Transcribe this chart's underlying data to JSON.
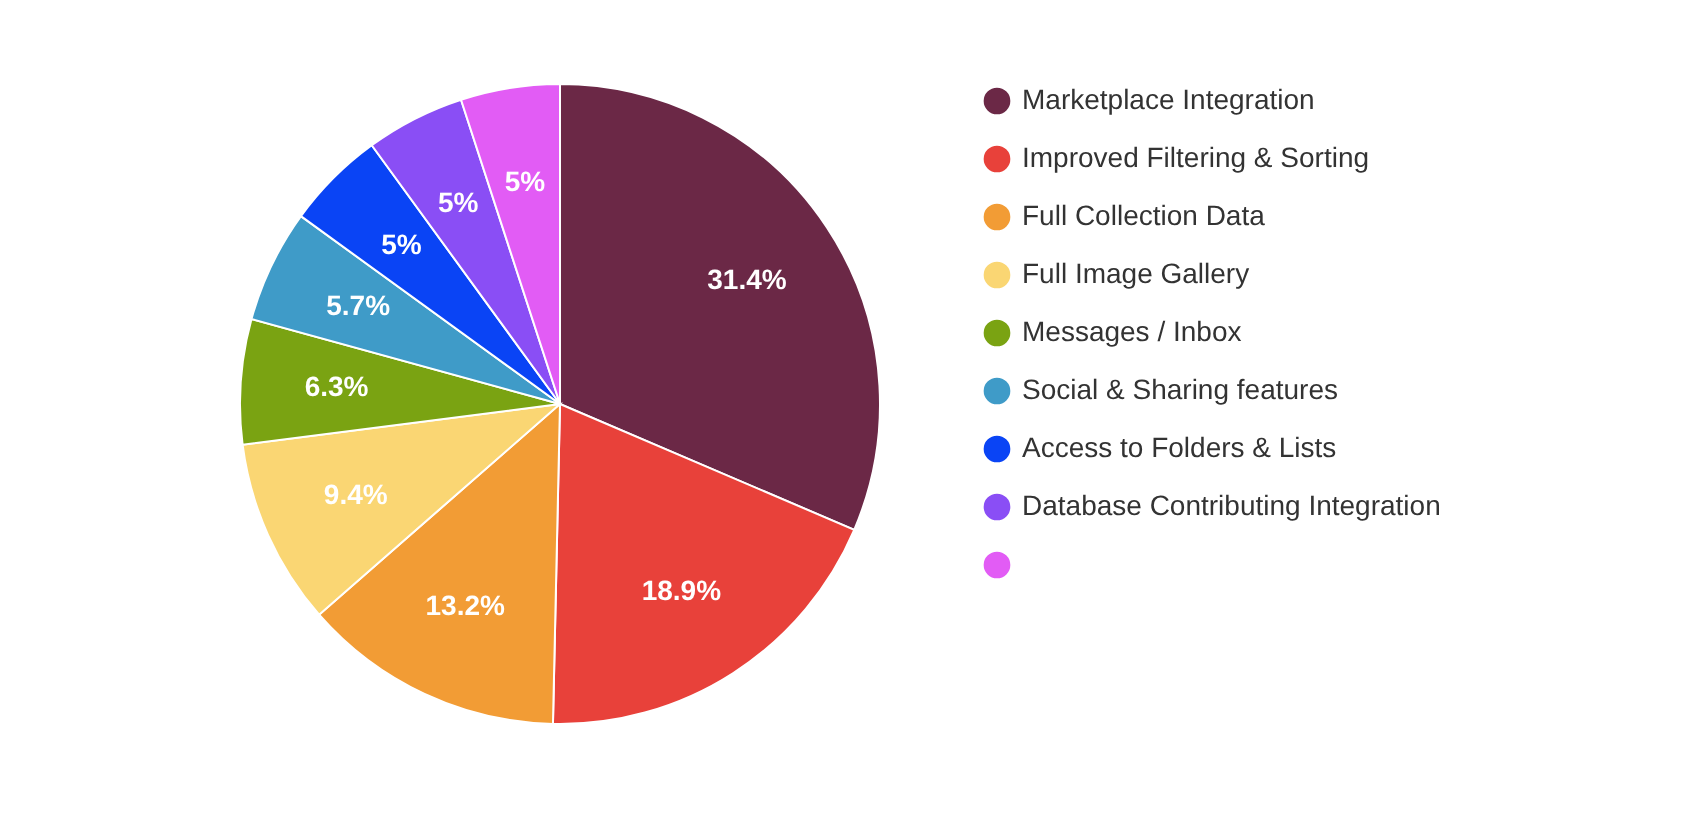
{
  "chart_data": {
    "type": "pie",
    "categories": [
      "Marketplace Integration",
      "Improved Filtering & Sorting",
      "Full Collection Data",
      "Full Image Gallery",
      "Messages / Inbox",
      "Social & Sharing features",
      "Access to Folders & Lists",
      "Database Contributing Integration",
      null
    ],
    "values": [
      31.4,
      18.9,
      13.2,
      9.4,
      6.3,
      5.7,
      5,
      5,
      5
    ],
    "value_labels": [
      "31.4%",
      "18.9%",
      "13.2%",
      "9.4%",
      "6.3%",
      "5.7%",
      "5%",
      "5%",
      "5%"
    ],
    "colors": [
      "#6b2846",
      "#e8413a",
      "#f29c35",
      "#fad673",
      "#7aa312",
      "#3f9bc8",
      "#0a44f5",
      "#8a4ef5",
      "#e25cf5"
    ],
    "legend": "right"
  }
}
